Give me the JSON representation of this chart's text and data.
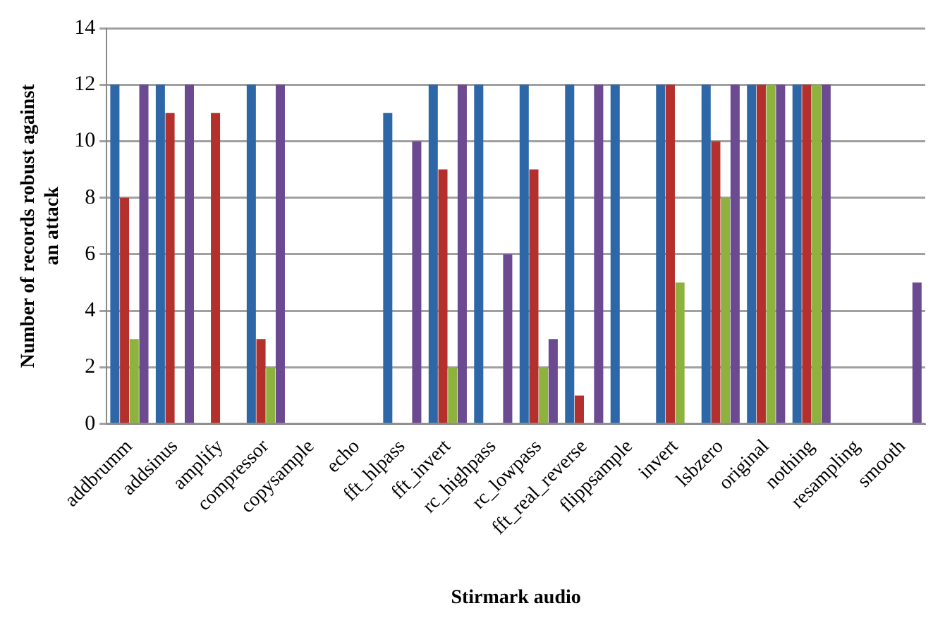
{
  "chart_data": {
    "type": "bar",
    "xlabel": "Stirmark audio",
    "ylabel": "Number of records robust against an attack",
    "categories": [
      "addbrumm",
      "addsinus",
      "amplify",
      "compressor",
      "copysample",
      "echo",
      "fft_hlpass",
      "fft_invert",
      "rc_highpass",
      "rc_lowpass",
      "fft_real_reverse",
      "flippsample",
      "invert",
      "lsbzero",
      "original",
      "nothing",
      "resampling",
      "smooth"
    ],
    "series": [
      {
        "color": "#2e67a8",
        "values": [
          12,
          12,
          0,
          12,
          0,
          0,
          11,
          12,
          12,
          12,
          12,
          12,
          12,
          12,
          12,
          12,
          0,
          0
        ]
      },
      {
        "color": "#b4302c",
        "values": [
          8,
          11,
          11,
          3,
          0,
          0,
          0,
          9,
          0,
          9,
          1,
          0,
          12,
          10,
          12,
          12,
          0,
          0
        ]
      },
      {
        "color": "#8db23e",
        "values": [
          3,
          0,
          0,
          2,
          0,
          0,
          0,
          2,
          0,
          2,
          0,
          0,
          5,
          8,
          12,
          12,
          0,
          0
        ]
      },
      {
        "color": "#6c4a92",
        "values": [
          12,
          12,
          0,
          12,
          0,
          0,
          10,
          12,
          6,
          3,
          12,
          0,
          0,
          12,
          12,
          12,
          0,
          5
        ]
      }
    ],
    "ylim": [
      0,
      14
    ],
    "yticks": [
      0,
      2,
      4,
      6,
      8,
      10,
      12,
      14
    ],
    "grid": "y",
    "legend": false
  }
}
